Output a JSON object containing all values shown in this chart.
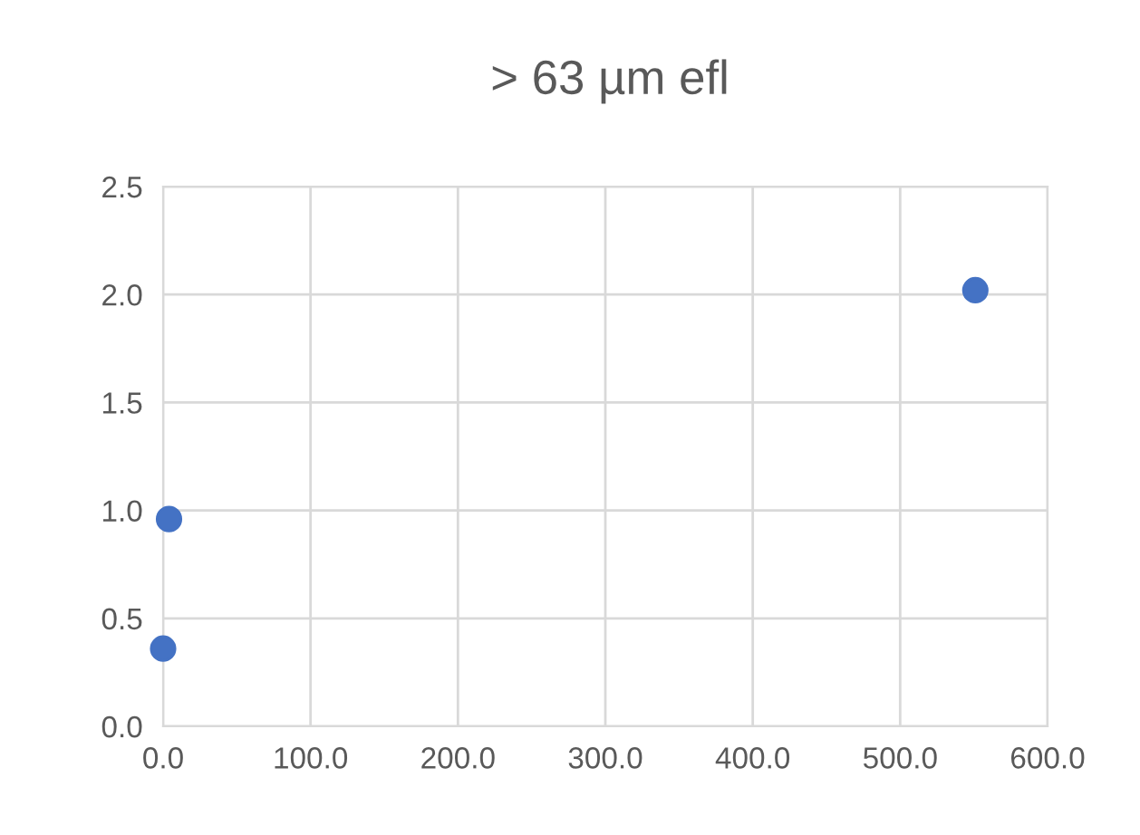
{
  "chart_data": {
    "type": "scatter",
    "title": "> 63 µm efl",
    "x": [
      0.0,
      4.0,
      551.0
    ],
    "series": [
      {
        "color": "#4472c4",
        "values": [
          0.36,
          0.96,
          2.02
        ]
      }
    ],
    "xlim": [
      0,
      600
    ],
    "ylim": [
      0,
      2.5
    ],
    "xticks": [
      {
        "value": 0,
        "label": "0.0"
      },
      {
        "value": 100,
        "label": "100.0"
      },
      {
        "value": 200,
        "label": "200.0"
      },
      {
        "value": 300,
        "label": "300.0"
      },
      {
        "value": 400,
        "label": "400.0"
      },
      {
        "value": 500,
        "label": "500.0"
      },
      {
        "value": 600,
        "label": "600.0"
      }
    ],
    "yticks": [
      {
        "value": 0,
        "label": "0.0"
      },
      {
        "value": 0.5,
        "label": "0.5"
      },
      {
        "value": 1.0,
        "label": "1.0"
      },
      {
        "value": 1.5,
        "label": "1.5"
      },
      {
        "value": 2.0,
        "label": "2.0"
      },
      {
        "value": 2.5,
        "label": "2.5"
      }
    ],
    "grid": true,
    "marker": "circle"
  }
}
